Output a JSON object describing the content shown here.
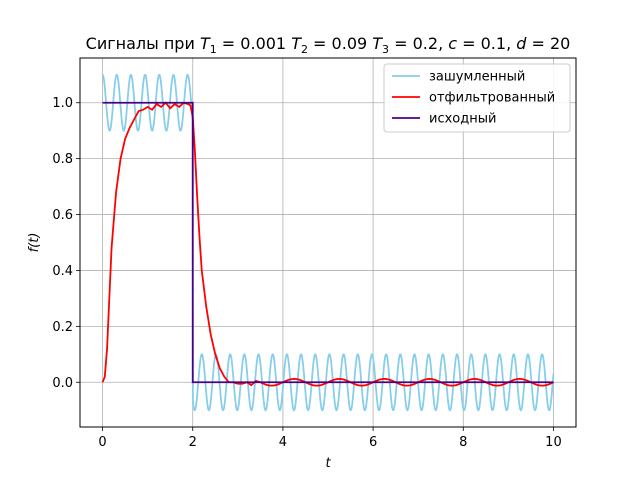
{
  "chart_data": {
    "type": "line",
    "title": "Сигналы при T_1 = 0.001 T_2 = 0.09 T_3 = 0.2, c = 0.1, d = 20",
    "title_parts": [
      "Сигналы при ",
      "T",
      "1",
      " = 0.001 ",
      "T",
      "2",
      " = 0.09 ",
      "T",
      "3",
      " = 0.2, ",
      "c",
      " = 0.1, ",
      "d",
      " = 20"
    ],
    "xlabel": "t",
    "ylabel": "f(t)",
    "xlim": [
      -0.5,
      10.5
    ],
    "ylim": [
      -0.16,
      1.16
    ],
    "xticks": [
      0,
      2,
      4,
      6,
      8,
      10
    ],
    "yticks": [
      0.0,
      0.2,
      0.4,
      0.6,
      0.8,
      1.0
    ],
    "xtick_labels": [
      "0",
      "2",
      "4",
      "6",
      "8",
      "10"
    ],
    "ytick_labels": [
      "0.0",
      "0.2",
      "0.4",
      "0.6",
      "0.8",
      "1.0"
    ],
    "grid": true,
    "legend_position": "top-right",
    "series": [
      {
        "name": "зашумленный",
        "color": "#87ceeb",
        "description": "source signal plus sinusoidal noise of amplitude 0.1",
        "noise_amplitude": 0.1,
        "noise_frequency_hz": 3.18,
        "x_range": [
          0,
          10
        ]
      },
      {
        "name": "отфильтрованный",
        "color": "#ff0000",
        "x": [
          0,
          0.05,
          0.1,
          0.15,
          0.2,
          0.3,
          0.4,
          0.5,
          0.6,
          0.7,
          0.8,
          0.9,
          1.0,
          1.1,
          1.2,
          1.3,
          1.4,
          1.5,
          1.6,
          1.7,
          1.8,
          1.9,
          1.95,
          2.0,
          2.05,
          2.1,
          2.15,
          2.2,
          2.3,
          2.4,
          2.5,
          2.6,
          2.7,
          2.8,
          2.9,
          3.0,
          3.1,
          3.2,
          3.3,
          3.4,
          3.5
        ],
        "y": [
          0.0,
          0.02,
          0.12,
          0.3,
          0.48,
          0.68,
          0.8,
          0.87,
          0.91,
          0.94,
          0.97,
          0.975,
          0.985,
          0.975,
          0.995,
          0.985,
          1.0,
          0.98,
          0.995,
          0.985,
          1.0,
          0.995,
          0.99,
          0.95,
          0.82,
          0.66,
          0.52,
          0.4,
          0.27,
          0.17,
          0.1,
          0.05,
          0.02,
          0.0,
          0.0,
          -0.005,
          -0.005,
          0.0,
          -0.01,
          0.005,
          0.0
        ],
        "tail_oscillation": {
          "x_range": [
            3.5,
            10
          ],
          "amplitude": 0.012,
          "frequency_hz": 1.0
        }
      },
      {
        "name": "исходный",
        "color": "#4b0082",
        "x": [
          0,
          2,
          2,
          10
        ],
        "y": [
          1,
          1,
          0,
          0
        ]
      }
    ]
  }
}
